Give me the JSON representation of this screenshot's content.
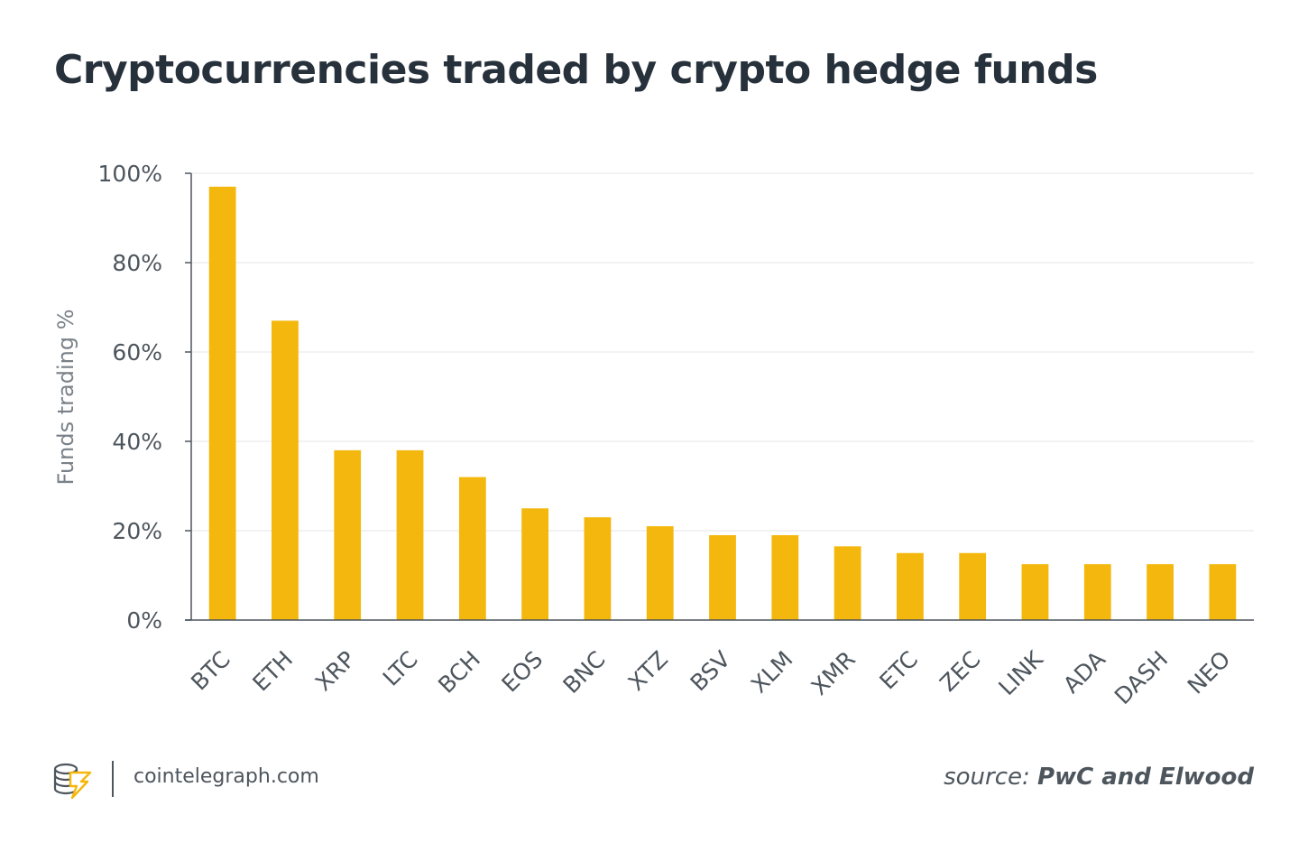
{
  "chart_data": {
    "type": "bar",
    "title": "Cryptocurrencies traded by crypto hedge funds",
    "ylabel": "Funds trading %",
    "xlabel": "",
    "ylim": [
      0,
      100
    ],
    "yticks": [
      "0%",
      "20%",
      "40%",
      "60%",
      "80%",
      "100%"
    ],
    "ytick_values": [
      0,
      20,
      40,
      60,
      80,
      100
    ],
    "categories": [
      "BTC",
      "ETH",
      "XRP",
      "LTC",
      "BCH",
      "EOS",
      "BNC",
      "XTZ",
      "BSV",
      "XLM",
      "XMR",
      "ETC",
      "ZEC",
      "LINK",
      "ADA",
      "DASH",
      "NEO"
    ],
    "values": [
      97,
      67,
      38,
      38,
      32,
      25,
      23,
      21,
      19,
      19,
      16.5,
      15,
      15,
      12.5,
      12.5,
      12.5,
      12.5
    ],
    "bar_color": "#f4b70d",
    "grid": true,
    "legend": "none"
  },
  "footer": {
    "site": "cointelegraph.com",
    "source_prefix": "source:",
    "source_name": "PwC and Elwood",
    "logo_icon": "cointelegraph-logo-icon"
  }
}
